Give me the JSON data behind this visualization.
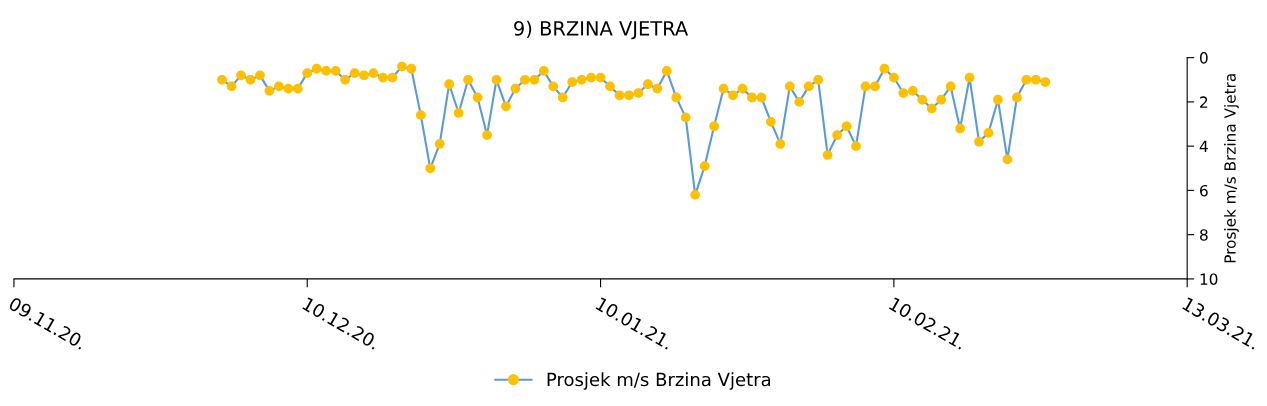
{
  "chart_data": {
    "type": "line",
    "title": "9) BRZINA VJETRA",
    "ylabel": "Prosjek m/s Brzina Vjetra",
    "x": [
      "2020-12-01",
      "2020-12-02",
      "2020-12-03",
      "2020-12-04",
      "2020-12-05",
      "2020-12-06",
      "2020-12-07",
      "2020-12-08",
      "2020-12-09",
      "2020-12-10",
      "2020-12-11",
      "2020-12-12",
      "2020-12-13",
      "2020-12-14",
      "2020-12-15",
      "2020-12-16",
      "2020-12-17",
      "2020-12-18",
      "2020-12-19",
      "2020-12-20",
      "2020-12-21",
      "2020-12-22",
      "2020-12-23",
      "2020-12-24",
      "2020-12-25",
      "2020-12-26",
      "2020-12-27",
      "2020-12-28",
      "2020-12-29",
      "2020-12-30",
      "2020-12-31",
      "2021-01-01",
      "2021-01-02",
      "2021-01-03",
      "2021-01-04",
      "2021-01-05",
      "2021-01-06",
      "2021-01-07",
      "2021-01-08",
      "2021-01-09",
      "2021-01-10",
      "2021-01-11",
      "2021-01-12",
      "2021-01-13",
      "2021-01-14",
      "2021-01-15",
      "2021-01-16",
      "2021-01-17",
      "2021-01-18",
      "2021-01-19",
      "2021-01-20",
      "2021-01-21",
      "2021-01-22",
      "2021-01-23",
      "2021-01-24",
      "2021-01-25",
      "2021-01-26",
      "2021-01-27",
      "2021-01-28",
      "2021-01-29",
      "2021-01-30",
      "2021-01-31",
      "2021-02-01",
      "2021-02-02",
      "2021-02-03",
      "2021-02-04",
      "2021-02-05",
      "2021-02-06",
      "2021-02-07",
      "2021-02-08",
      "2021-02-09",
      "2021-02-10",
      "2021-02-11",
      "2021-02-12",
      "2021-02-13",
      "2021-02-14",
      "2021-02-15",
      "2021-02-16",
      "2021-02-17",
      "2021-02-18",
      "2021-02-19",
      "2021-02-20",
      "2021-02-21",
      "2021-02-22",
      "2021-02-23",
      "2021-02-24",
      "2021-02-25",
      "2021-02-26"
    ],
    "series": [
      {
        "name": "Prosjek m/s Brzina Vjetra",
        "color": "#5b9bd5",
        "colors": [
          "#ffc000",
          "#ffc000",
          "#ffc000",
          "#ffc000",
          "#ffc000",
          "#ffc000",
          "#ffc000",
          "#ffc000",
          "#ffc000",
          "#ffc000",
          "#ffc000",
          "#ffc000",
          "#ffc000",
          "#ffc000",
          "#ffc000",
          "#ffc000",
          "#ffc000",
          "#ffc000",
          "#ffc000",
          "#ffc000",
          "#ffc000",
          "#ffc000",
          "#ffc000",
          "#ffc000",
          "#ffc000",
          "#ffc000",
          "#ffc000",
          "#ffc000",
          "#ffc000",
          "#ffc000",
          "#ffc000",
          "#ffc000",
          "#ffc000",
          "#ffc000",
          "#ffc000",
          "#ffc000",
          "#ffc000",
          "#ffc000",
          "#ffc000",
          "#ffc000",
          "#ffc000",
          "#ffc000",
          "#ffc000",
          "#ffc000",
          "#ffc000",
          "#ffc000",
          "#ffc000",
          "#ffc000",
          "#ffc000",
          "#ffc000",
          "#ffc000",
          "#ffc000",
          "#ffc000",
          "#ffc000",
          "#ffc000",
          "#ffc000",
          "#ffc000",
          "#ffc000",
          "#ffc000",
          "#ffc000",
          "#ffc000",
          "#ffc000",
          "#ffc000",
          "#ffc000",
          "#ffc000",
          "#ffc000",
          "#ffc000",
          "#ffc000",
          "#ffc000",
          "#ffc000",
          "#ffc000",
          "#ffc000",
          "#ffc000",
          "#ffc000",
          "#ffc000",
          "#ffc000",
          "#ffc000",
          "#ffc000",
          "#ffc000",
          "#ffc000",
          "#ffc000",
          "#ffc000",
          "#ffc000",
          "#ffc000",
          "#ffc000",
          "#ffc000",
          "#ffc000",
          "#ffc000"
        ],
        "values": [
          1.0,
          1.3,
          0.8,
          1.0,
          0.8,
          1.5,
          1.3,
          1.4,
          1.4,
          0.7,
          0.5,
          0.6,
          0.6,
          1.0,
          0.7,
          0.8,
          0.7,
          0.9,
          0.9,
          0.4,
          0.5,
          2.6,
          5.0,
          3.9,
          1.2,
          2.5,
          1.0,
          1.8,
          3.5,
          1.0,
          2.2,
          1.4,
          1.0,
          1.0,
          0.6,
          1.3,
          1.8,
          1.1,
          1.0,
          0.9,
          0.9,
          1.3,
          1.7,
          1.7,
          1.6,
          1.2,
          1.4,
          0.6,
          1.8,
          2.7,
          6.2,
          4.9,
          3.1,
          1.4,
          1.7,
          1.4,
          1.8,
          1.8,
          2.9,
          3.9,
          1.3,
          2.0,
          1.3,
          1.0,
          4.4,
          3.5,
          3.1,
          4.0,
          1.3,
          1.3,
          0.5,
          0.9,
          1.6,
          1.5,
          1.9,
          2.3,
          1.9,
          1.3,
          3.2,
          0.9,
          3.8,
          3.4,
          1.9,
          4.6,
          1.8,
          1.0,
          1.0,
          1.1
        ]
      }
    ],
    "xlim": [
      "2020-11-09",
      "2021-03-13"
    ],
    "xticks": [
      {
        "value": "2020-11-09",
        "label": "09.11.20."
      },
      {
        "value": "2020-12-10",
        "label": "10.12.20."
      },
      {
        "value": "2021-01-10",
        "label": "10.01.21."
      },
      {
        "value": "2021-02-10",
        "label": "10.02.21."
      },
      {
        "value": "2021-03-13",
        "label": "13.03.21."
      }
    ],
    "ylim": [
      10,
      0
    ],
    "yticks": [
      0,
      2,
      4,
      6,
      8,
      10
    ],
    "marker": "circle",
    "line_style": "solid",
    "grid": false,
    "legend": "bottom"
  }
}
